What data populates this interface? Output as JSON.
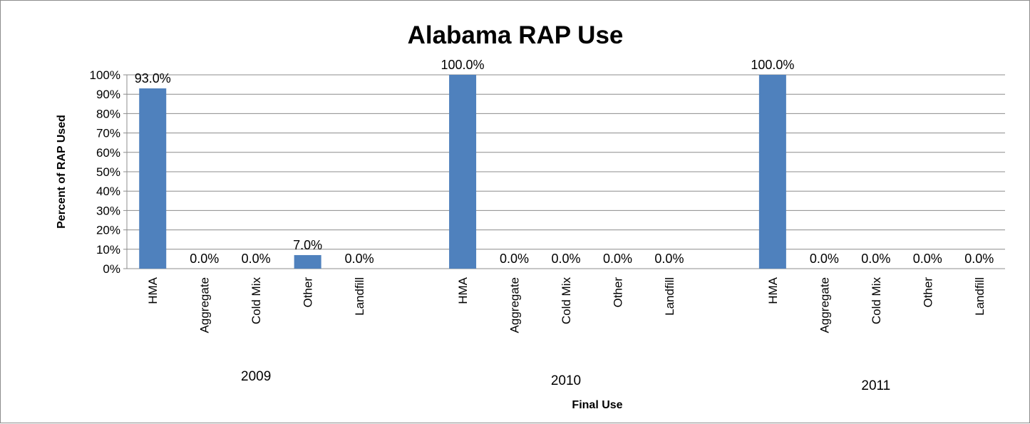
{
  "chart_data": {
    "type": "bar",
    "title": "Alabama RAP Use",
    "xlabel": "Final Use",
    "ylabel": "Percent of RAP Used",
    "ylim": [
      0,
      100
    ],
    "yticks": [
      "0%",
      "10%",
      "20%",
      "30%",
      "40%",
      "50%",
      "60%",
      "70%",
      "80%",
      "90%",
      "100%"
    ],
    "grid": true,
    "legend": "none",
    "bar_color": "#4f81bd",
    "groups": [
      {
        "label": "2009",
        "categories": [
          "HMA",
          "Aggregate",
          "Cold Mix",
          "Other",
          "Landfill"
        ],
        "values": [
          93,
          0,
          0,
          7,
          0
        ],
        "data_labels": [
          "93.0%",
          "0.0%",
          "0.0%",
          "7.0%",
          "0.0%"
        ]
      },
      {
        "label": "2010",
        "categories": [
          "HMA",
          "Aggregate",
          "Cold Mix",
          "Other",
          "Landfill"
        ],
        "values": [
          100,
          0,
          0,
          0,
          0
        ],
        "data_labels": [
          "100.0%",
          "0.0%",
          "0.0%",
          "0.0%",
          "0.0%"
        ]
      },
      {
        "label": "2011",
        "categories": [
          "HMA",
          "Aggregate",
          "Cold Mix",
          "Other",
          "Landfill"
        ],
        "values": [
          100,
          0,
          0,
          0,
          0
        ],
        "data_labels": [
          "100.0%",
          "0.0%",
          "0.0%",
          "0.0%",
          "0.0%"
        ]
      }
    ]
  }
}
